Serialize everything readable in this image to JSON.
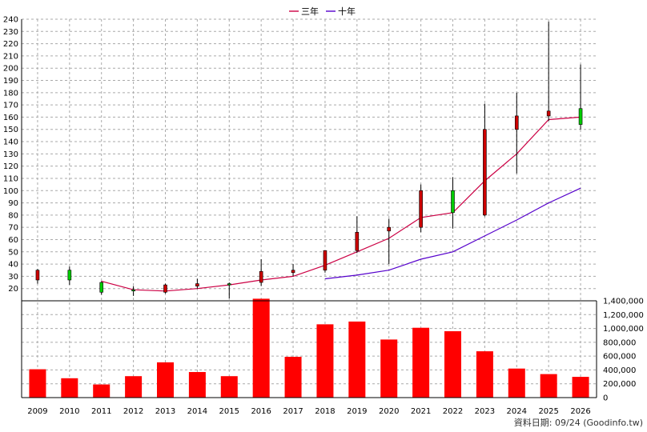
{
  "chart_data": {
    "type": "candlestick+line+bar",
    "categories": [
      "2009",
      "2010",
      "2011",
      "2012",
      "2013",
      "2014",
      "2015",
      "2016",
      "2017",
      "2018",
      "2019",
      "2020",
      "2021",
      "2022",
      "2023",
      "2024",
      "2025",
      "2026"
    ],
    "price_axis": {
      "min": 10,
      "max": 240,
      "ticks": [
        20,
        30,
        40,
        50,
        60,
        70,
        80,
        90,
        100,
        110,
        120,
        130,
        140,
        150,
        160,
        170,
        180,
        190,
        200,
        210,
        220,
        230,
        240
      ]
    },
    "volume_axis": {
      "min": 0,
      "max": 1400000,
      "ticks": [
        0,
        200000,
        400000,
        600000,
        800000,
        1000000,
        1200000,
        1400000
      ],
      "tick_labels": [
        "0",
        "200,000",
        "400,000",
        "600,000",
        "800,000",
        "1,000,000",
        "1,200,000",
        "1,400,000"
      ]
    },
    "candles": [
      {
        "open": 27,
        "high": 36,
        "low": 24,
        "close": 35
      },
      {
        "open": 35,
        "high": 38,
        "low": 23,
        "close": 27
      },
      {
        "open": 25,
        "high": 26,
        "low": 15,
        "close": 17
      },
      {
        "open": 19,
        "high": 22,
        "low": 14,
        "close": 18
      },
      {
        "open": 17,
        "high": 24,
        "low": 16,
        "close": 23
      },
      {
        "open": 22,
        "high": 28,
        "low": 20,
        "close": 24
      },
      {
        "open": 24,
        "high": 25,
        "low": 12,
        "close": 23
      },
      {
        "open": 25,
        "high": 44,
        "low": 22,
        "close": 34
      },
      {
        "open": 33,
        "high": 40,
        "low": 30,
        "close": 35
      },
      {
        "open": 35,
        "high": 51,
        "low": 33,
        "close": 51
      },
      {
        "open": 51,
        "high": 79,
        "low": 49,
        "close": 66
      },
      {
        "open": 67,
        "high": 77,
        "low": 40,
        "close": 70
      },
      {
        "open": 70,
        "high": 105,
        "low": 66,
        "close": 100
      },
      {
        "open": 100,
        "high": 111,
        "low": 69,
        "close": 82
      },
      {
        "open": 80,
        "high": 171,
        "low": 79,
        "close": 150
      },
      {
        "open": 150,
        "high": 180,
        "low": 114,
        "close": 161
      },
      {
        "open": 161,
        "high": 238,
        "low": 157,
        "close": 165
      },
      {
        "open": 167,
        "high": 203,
        "low": 150,
        "close": 154
      }
    ],
    "series": [
      {
        "name": "三年",
        "color": "#cc0044",
        "values": [
          null,
          null,
          26,
          19,
          18,
          20,
          23,
          27,
          30,
          39,
          50,
          61,
          78,
          82,
          108,
          130,
          158,
          160
        ]
      },
      {
        "name": "十年",
        "color": "#5500cc",
        "values": [
          null,
          null,
          null,
          null,
          null,
          null,
          null,
          null,
          null,
          28,
          31,
          35,
          44,
          50,
          63,
          76,
          90,
          102
        ]
      }
    ],
    "volume": [
      410000,
      280000,
      190000,
      310000,
      510000,
      370000,
      310000,
      1430000,
      590000,
      1060000,
      1100000,
      840000,
      1010000,
      960000,
      670000,
      420000,
      340000,
      300000
    ],
    "up_color": "#cc0000",
    "down_color": "#00cc00",
    "volume_color": "#ff0000",
    "legend_position": "top-center",
    "grid": true
  },
  "source_text": "資料日期: 09/24 (Goodinfo.tw)"
}
